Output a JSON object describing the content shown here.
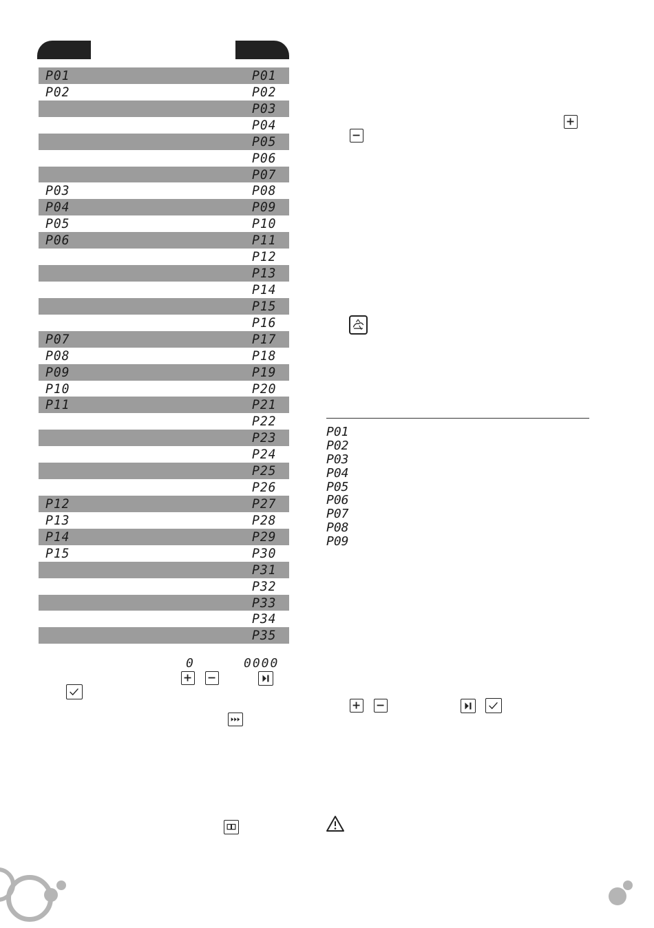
{
  "table": {
    "rows": [
      {
        "left": "P01",
        "right": "P01",
        "shaded": true
      },
      {
        "left": "P02",
        "right": "P02",
        "shaded": false
      },
      {
        "left": "",
        "right": "P03",
        "shaded": true
      },
      {
        "left": "",
        "right": "P04",
        "shaded": false
      },
      {
        "left": "",
        "right": "P05",
        "shaded": true
      },
      {
        "left": "",
        "right": "P06",
        "shaded": false
      },
      {
        "left": "",
        "right": "P07",
        "shaded": true
      },
      {
        "left": "P03",
        "right": "P08",
        "shaded": false
      },
      {
        "left": "P04",
        "right": "P09",
        "shaded": true
      },
      {
        "left": "P05",
        "right": "P10",
        "shaded": false
      },
      {
        "left": "P06",
        "right": "P11",
        "shaded": true
      },
      {
        "left": "",
        "right": "P12",
        "shaded": false
      },
      {
        "left": "",
        "right": "P13",
        "shaded": true
      },
      {
        "left": "",
        "right": "P14",
        "shaded": false
      },
      {
        "left": "",
        "right": "P15",
        "shaded": true
      },
      {
        "left": "",
        "right": "P16",
        "shaded": false
      },
      {
        "left": "P07",
        "right": "P17",
        "shaded": true
      },
      {
        "left": "P08",
        "right": "P18",
        "shaded": false
      },
      {
        "left": "P09",
        "right": "P19",
        "shaded": true
      },
      {
        "left": "P10",
        "right": "P20",
        "shaded": false
      },
      {
        "left": "P11",
        "right": "P21",
        "shaded": true
      },
      {
        "left": "",
        "right": "P22",
        "shaded": false
      },
      {
        "left": "",
        "right": "P23",
        "shaded": true
      },
      {
        "left": "",
        "right": "P24",
        "shaded": false
      },
      {
        "left": "",
        "right": "P25",
        "shaded": true
      },
      {
        "left": "",
        "right": "P26",
        "shaded": false
      },
      {
        "left": "P12",
        "right": "P27",
        "shaded": true
      },
      {
        "left": "P13",
        "right": "P28",
        "shaded": false
      },
      {
        "left": "P14",
        "right": "P29",
        "shaded": true
      },
      {
        "left": "P15",
        "right": "P30",
        "shaded": false
      },
      {
        "left": "",
        "right": "P31",
        "shaded": true
      },
      {
        "left": "",
        "right": "P32",
        "shaded": false
      },
      {
        "left": "",
        "right": "P33",
        "shaded": true
      },
      {
        "left": "",
        "right": "P34",
        "shaded": false
      },
      {
        "left": "",
        "right": "P35",
        "shaded": true
      }
    ]
  },
  "legend": {
    "codes": [
      "P01",
      "P02",
      "P03",
      "P04",
      "P05",
      "P06",
      "P07",
      "P08",
      "P09"
    ]
  },
  "readouts": {
    "single_digit": "0",
    "four_digits": "0000"
  },
  "colors": {
    "header_tab": "#222222",
    "row_shade": "#9c9c9c",
    "decor_circle": "#b5b5b5"
  },
  "icons": [
    "plus-icon",
    "minus-icon",
    "play-pause-icon",
    "check-icon",
    "fast-forward-icon",
    "recipe-book-icon",
    "chef-hat-icon",
    "warning-icon"
  ]
}
